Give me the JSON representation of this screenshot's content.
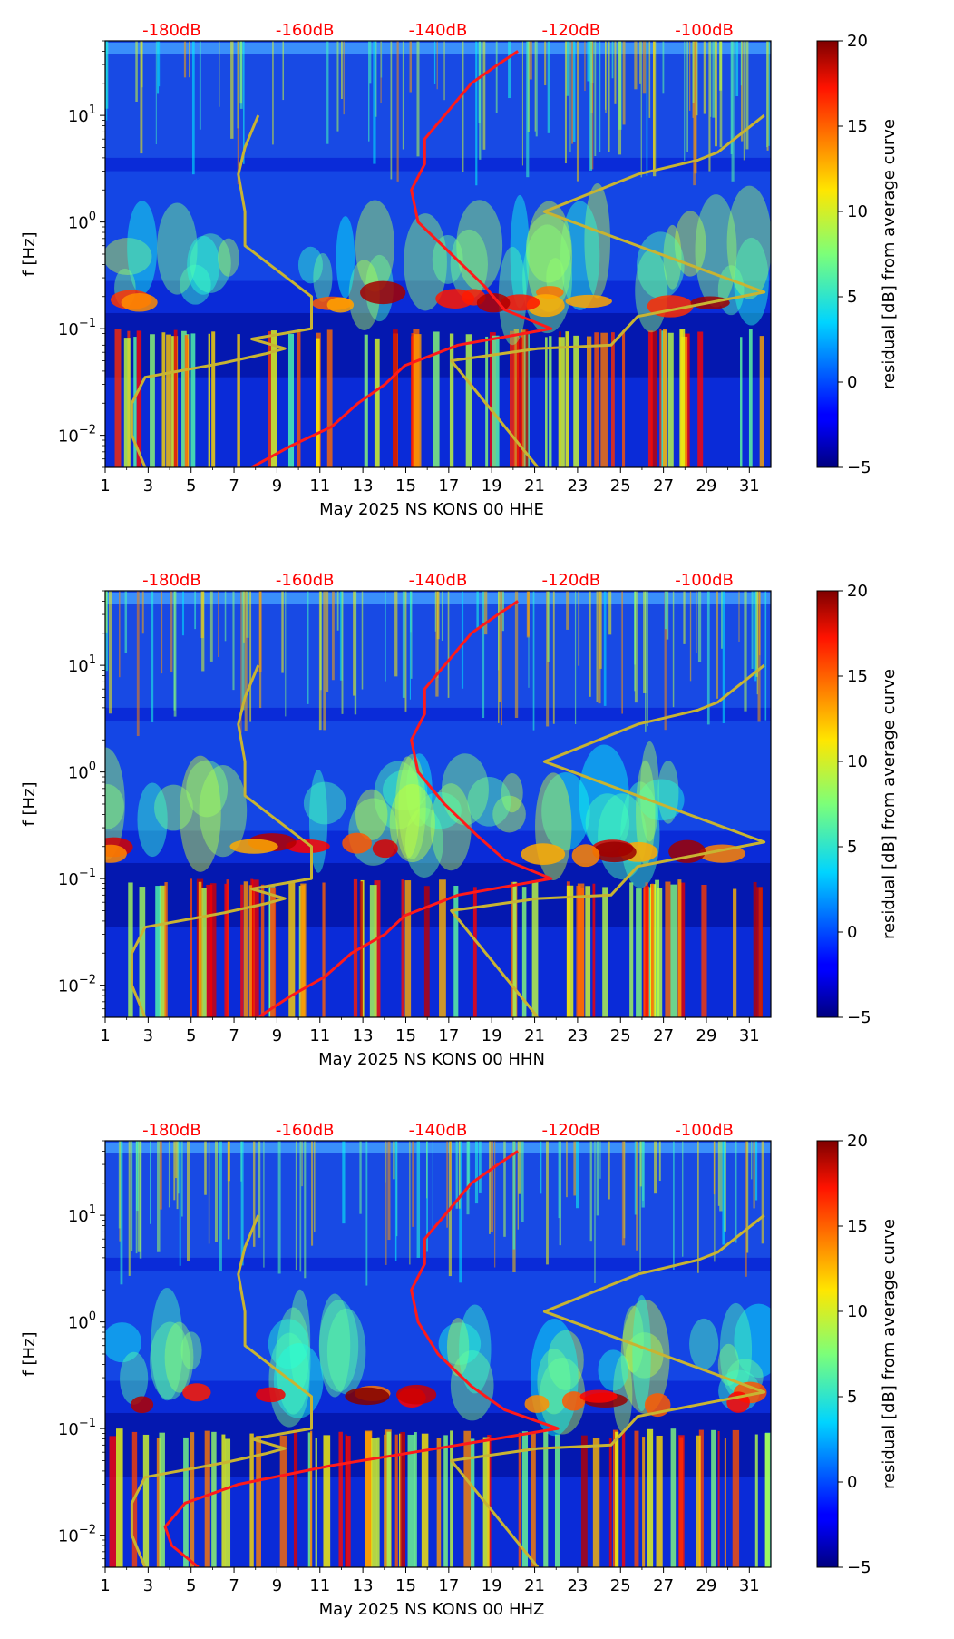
{
  "colors": {
    "psd_curve": "#ff1a1a",
    "ref_curves": "#c8b432",
    "top_labels": "#ff0000",
    "colormap": "jet",
    "background": "#ffffff"
  },
  "chart_data": [
    {
      "type": "heatmap",
      "title": "",
      "xlabel": "May 2025 NS KONS 00 HHE",
      "ylabel": "f [Hz]",
      "x_range": [
        1,
        32
      ],
      "y_range": [
        0.005,
        50
      ],
      "y_scale": "log",
      "x_ticks": [
        "1",
        "3",
        "5",
        "7",
        "9",
        "11",
        "13",
        "15",
        "17",
        "19",
        "21",
        "23",
        "25",
        "27",
        "29",
        "31"
      ],
      "y_ticks": [
        {
          "base": "10",
          "exp": "1"
        },
        {
          "base": "10",
          "exp": "0"
        },
        {
          "base": "10",
          "exp": "−1"
        },
        {
          "base": "10",
          "exp": "−2"
        }
      ],
      "top_axis_labels": [
        "-180dB",
        "-160dB",
        "-140dB",
        "-120dB",
        "-100dB"
      ],
      "top_axis_db_range": [
        -190,
        -90
      ],
      "colorbar": {
        "label": "residual [dB] from average curve",
        "range": [
          -5,
          20
        ],
        "ticks": [
          "−5",
          "0",
          "5",
          "10",
          "15",
          "20"
        ]
      },
      "psd_curve": {
        "db": [
          -168,
          -162,
          -156,
          -152,
          -148,
          -145,
          -137,
          -123,
          -130,
          -133,
          -138,
          -143,
          -144,
          -142,
          -142,
          -139,
          -135,
          -131,
          -128
        ],
        "f": [
          0.005,
          0.008,
          0.012,
          0.02,
          0.03,
          0.045,
          0.07,
          0.1,
          0.15,
          0.25,
          0.5,
          1,
          2,
          3.5,
          6,
          10,
          20,
          30,
          40
        ]
      },
      "nlnm_curve": {
        "db": [
          -184,
          -186,
          -186,
          -184,
          -172,
          -166,
          -163,
          -168,
          -159,
          -159,
          -169,
          -169,
          -170,
          -169,
          -167
        ],
        "f": [
          0.005,
          0.01,
          0.02,
          0.035,
          0.048,
          0.058,
          0.065,
          0.08,
          0.1,
          0.2,
          0.6,
          1.25,
          2.8,
          5,
          10
        ]
      },
      "nhnm_curve": {
        "db": [
          -125,
          -138,
          -125,
          -114,
          -110,
          -91,
          -124,
          -110,
          -101,
          -98,
          -91
        ],
        "f": [
          0.005,
          0.05,
          0.065,
          0.07,
          0.13,
          0.22,
          1.25,
          2.8,
          3.8,
          4.5,
          10
        ]
      }
    },
    {
      "type": "heatmap",
      "title": "",
      "xlabel": "May 2025 NS KONS 00 HHN",
      "ylabel": "f [Hz]",
      "x_range": [
        1,
        32
      ],
      "y_range": [
        0.005,
        50
      ],
      "y_scale": "log",
      "x_ticks": [
        "1",
        "3",
        "5",
        "7",
        "9",
        "11",
        "13",
        "15",
        "17",
        "19",
        "21",
        "23",
        "25",
        "27",
        "29",
        "31"
      ],
      "y_ticks": [
        {
          "base": "10",
          "exp": "1"
        },
        {
          "base": "10",
          "exp": "0"
        },
        {
          "base": "10",
          "exp": "−1"
        },
        {
          "base": "10",
          "exp": "−2"
        }
      ],
      "top_axis_labels": [
        "-180dB",
        "-160dB",
        "-140dB",
        "-120dB",
        "-100dB"
      ],
      "top_axis_db_range": [
        -190,
        -90
      ],
      "colorbar": {
        "label": "residual [dB] from average curve",
        "range": [
          -5,
          20
        ],
        "ticks": [
          "−5",
          "0",
          "5",
          "10",
          "15",
          "20"
        ]
      },
      "psd_curve": {
        "db": [
          -167,
          -162,
          -157,
          -153,
          -148,
          -145,
          -137,
          -123,
          -130,
          -134,
          -139,
          -143,
          -144,
          -142,
          -142,
          -139,
          -135,
          -131,
          -128
        ],
        "f": [
          0.005,
          0.008,
          0.012,
          0.02,
          0.03,
          0.045,
          0.07,
          0.1,
          0.15,
          0.25,
          0.5,
          1,
          2,
          3.5,
          6,
          10,
          20,
          30,
          40
        ]
      },
      "nlnm_curve": {
        "db": [
          -184,
          -186,
          -186,
          -184,
          -172,
          -166,
          -163,
          -168,
          -159,
          -159,
          -169,
          -169,
          -170,
          -169,
          -167
        ],
        "f": [
          0.005,
          0.01,
          0.02,
          0.035,
          0.048,
          0.058,
          0.065,
          0.08,
          0.1,
          0.2,
          0.6,
          1.25,
          2.8,
          5,
          10
        ]
      },
      "nhnm_curve": {
        "db": [
          -125,
          -138,
          -125,
          -114,
          -110,
          -91,
          -124,
          -110,
          -101,
          -98,
          -91
        ],
        "f": [
          0.005,
          0.05,
          0.065,
          0.07,
          0.13,
          0.22,
          1.25,
          2.8,
          3.8,
          4.5,
          10
        ]
      }
    },
    {
      "type": "heatmap",
      "title": "",
      "xlabel": "May 2025 NS KONS 00 HHZ",
      "ylabel": "f [Hz]",
      "x_range": [
        1,
        32
      ],
      "y_range": [
        0.005,
        50
      ],
      "y_scale": "log",
      "x_ticks": [
        "1",
        "3",
        "5",
        "7",
        "9",
        "11",
        "13",
        "15",
        "17",
        "19",
        "21",
        "23",
        "25",
        "27",
        "29",
        "31"
      ],
      "y_ticks": [
        {
          "base": "10",
          "exp": "1"
        },
        {
          "base": "10",
          "exp": "0"
        },
        {
          "base": "10",
          "exp": "−1"
        },
        {
          "base": "10",
          "exp": "−2"
        }
      ],
      "top_axis_labels": [
        "-180dB",
        "-160dB",
        "-140dB",
        "-120dB",
        "-100dB"
      ],
      "top_axis_db_range": [
        -190,
        -90
      ],
      "colorbar": {
        "label": "residual [dB] from average curve",
        "range": [
          -5,
          20
        ],
        "ticks": [
          "−5",
          "0",
          "5",
          "10",
          "15",
          "20"
        ]
      },
      "psd_curve": {
        "db": [
          -176,
          -180,
          -181,
          -178,
          -170,
          -156,
          -137,
          -122,
          -130,
          -135,
          -140,
          -143,
          -144,
          -142,
          -142,
          -139,
          -135,
          -131,
          -128
        ],
        "f": [
          0.005,
          0.008,
          0.012,
          0.02,
          0.03,
          0.045,
          0.07,
          0.1,
          0.15,
          0.25,
          0.5,
          1,
          2,
          3.5,
          6,
          10,
          20,
          30,
          40
        ]
      },
      "nlnm_curve": {
        "db": [
          -184,
          -186,
          -186,
          -184,
          -172,
          -166,
          -163,
          -168,
          -159,
          -159,
          -169,
          -169,
          -170,
          -169,
          -167
        ],
        "f": [
          0.005,
          0.01,
          0.02,
          0.035,
          0.048,
          0.058,
          0.065,
          0.08,
          0.1,
          0.2,
          0.6,
          1.25,
          2.8,
          5,
          10
        ]
      },
      "nhnm_curve": {
        "db": [
          -125,
          -138,
          -125,
          -114,
          -110,
          -91,
          -124,
          -110,
          -101,
          -98,
          -91
        ],
        "f": [
          0.005,
          0.05,
          0.065,
          0.07,
          0.13,
          0.22,
          1.25,
          2.8,
          3.8,
          4.5,
          10
        ]
      }
    }
  ]
}
